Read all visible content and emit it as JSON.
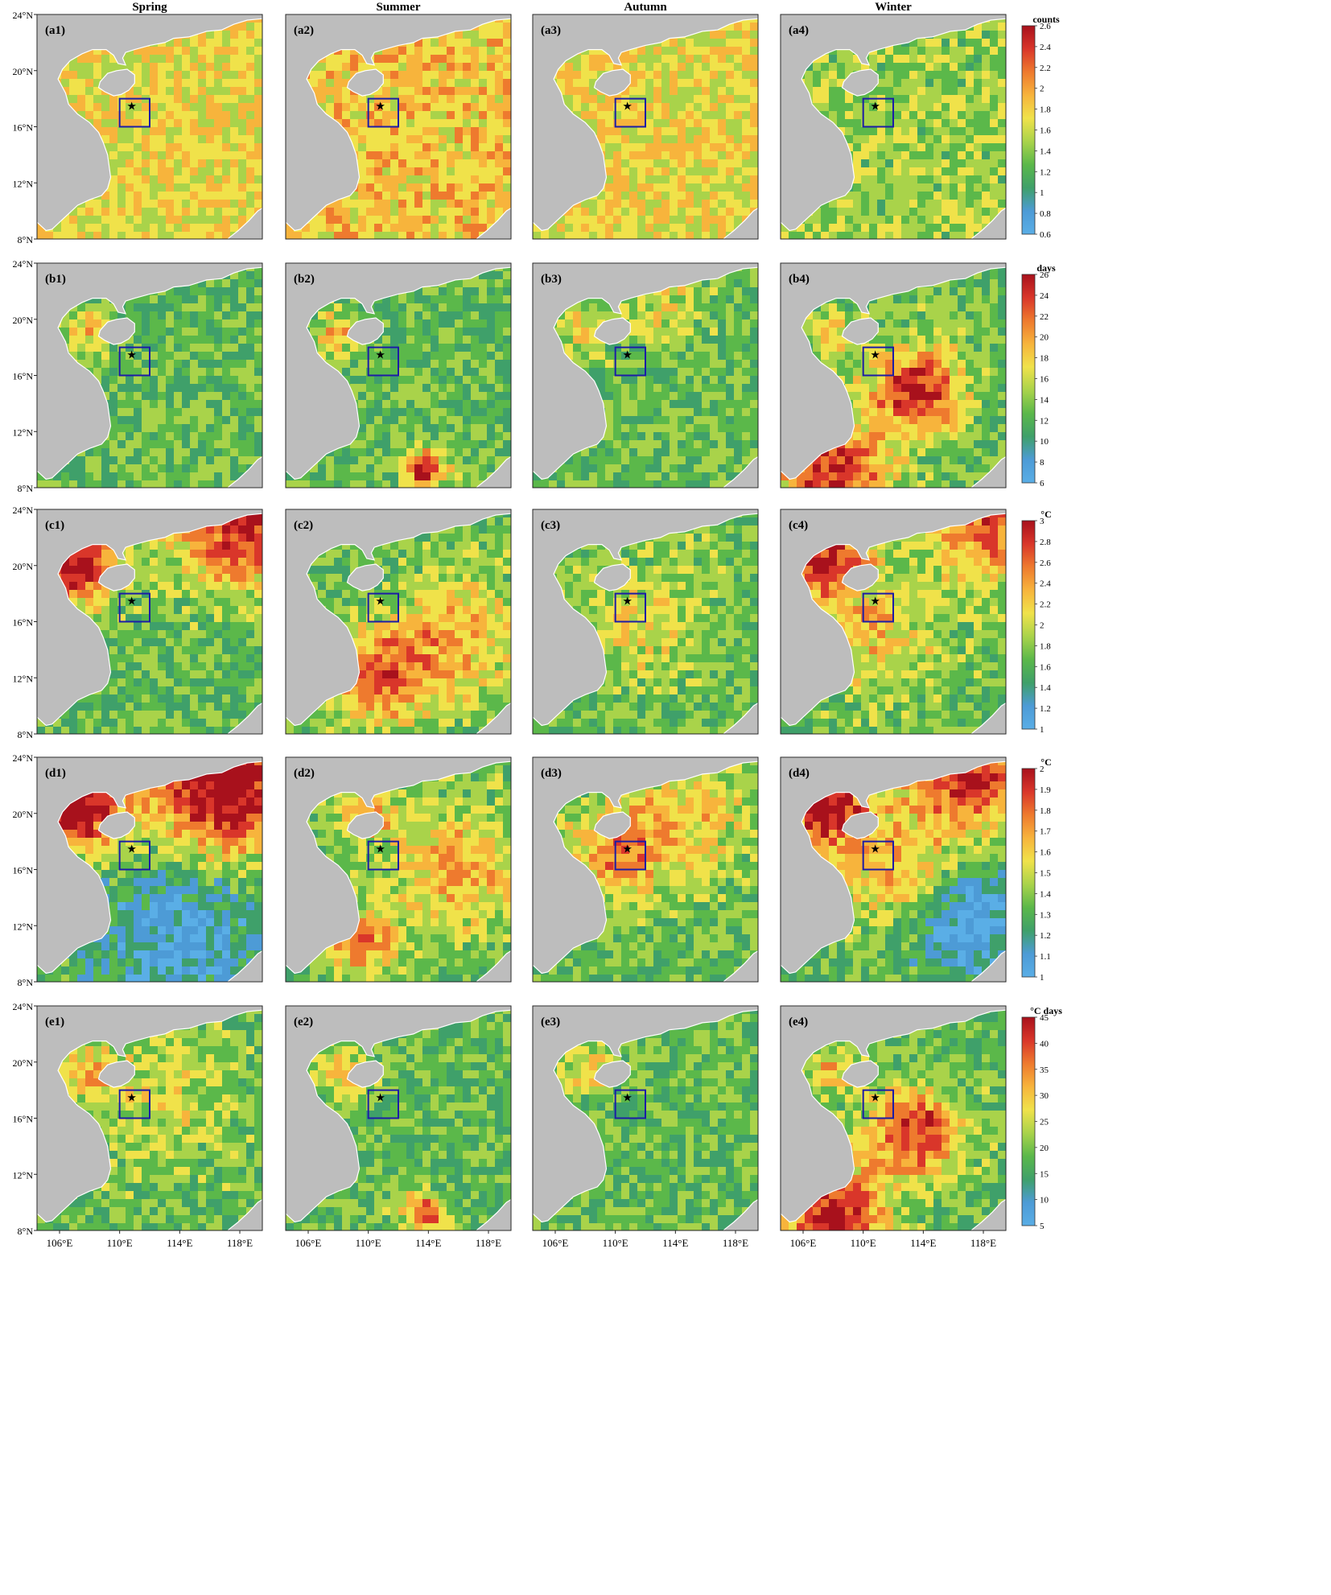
{
  "columns": [
    "Spring",
    "Summer",
    "Autumn",
    "Winter"
  ],
  "rows": [
    {
      "id": "a",
      "panels": [
        "(a1)",
        "(a2)",
        "(a3)",
        "(a4)"
      ],
      "colorbar": {
        "unit": "counts",
        "min": 0.6,
        "max": 2.6,
        "ticks": [
          "0.6",
          "0.8",
          "1",
          "1.2",
          "1.4",
          "1.6",
          "1.8",
          "2",
          "2.2",
          "2.4",
          "2.6"
        ]
      }
    },
    {
      "id": "b",
      "panels": [
        "(b1)",
        "(b2)",
        "(b3)",
        "(b4)"
      ],
      "colorbar": {
        "unit": "days",
        "min": 6,
        "max": 26,
        "ticks": [
          "6",
          "8",
          "10",
          "12",
          "14",
          "16",
          "18",
          "20",
          "22",
          "24",
          "26"
        ]
      }
    },
    {
      "id": "c",
      "panels": [
        "(c1)",
        "(c2)",
        "(c3)",
        "(c4)"
      ],
      "colorbar": {
        "unit": "°C",
        "min": 1,
        "max": 3,
        "ticks": [
          "1",
          "1.2",
          "1.4",
          "1.6",
          "1.8",
          "2",
          "2.2",
          "2.4",
          "2.6",
          "2.8",
          "3"
        ]
      }
    },
    {
      "id": "d",
      "panels": [
        "(d1)",
        "(d2)",
        "(d3)",
        "(d4)"
      ],
      "colorbar": {
        "unit": "°C",
        "min": 1,
        "max": 2,
        "ticks": [
          "1",
          "1.1",
          "1.2",
          "1.3",
          "1.4",
          "1.5",
          "1.6",
          "1.7",
          "1.8",
          "1.9",
          "2"
        ]
      }
    },
    {
      "id": "e",
      "panels": [
        "(e1)",
        "(e2)",
        "(e3)",
        "(e4)"
      ],
      "colorbar": {
        "unit": "°C days",
        "min": 5,
        "max": 45,
        "ticks": [
          "5",
          "10",
          "15",
          "20",
          "25",
          "30",
          "35",
          "40",
          "45"
        ]
      }
    }
  ],
  "axes": {
    "lat_ticks": [
      "8°N",
      "12°N",
      "16°N",
      "20°N",
      "24°N"
    ],
    "lat_values": [
      8,
      12,
      16,
      20,
      24
    ],
    "lon_ticks": [
      "106°E",
      "110°E",
      "114°E",
      "118°E"
    ],
    "lon_values": [
      106,
      110,
      114,
      118
    ],
    "lon_range": [
      104.5,
      119.5
    ],
    "lat_range": [
      8,
      24
    ]
  },
  "study_box": {
    "lon": [
      110,
      112
    ],
    "lat": [
      16,
      18
    ]
  },
  "station_marker": {
    "lon": 110.8,
    "lat": 17.5,
    "symbol": "★"
  },
  "colors": {
    "land": "#bdbdbd",
    "box": "#1c1ca6",
    "scale": [
      "#5aaee6",
      "#4d9bd6",
      "#3fa06a",
      "#5bb84a",
      "#a9d34a",
      "#f0e24a",
      "#f7b43c",
      "#ee7a2e",
      "#d9362a",
      "#a8111c"
    ]
  }
}
